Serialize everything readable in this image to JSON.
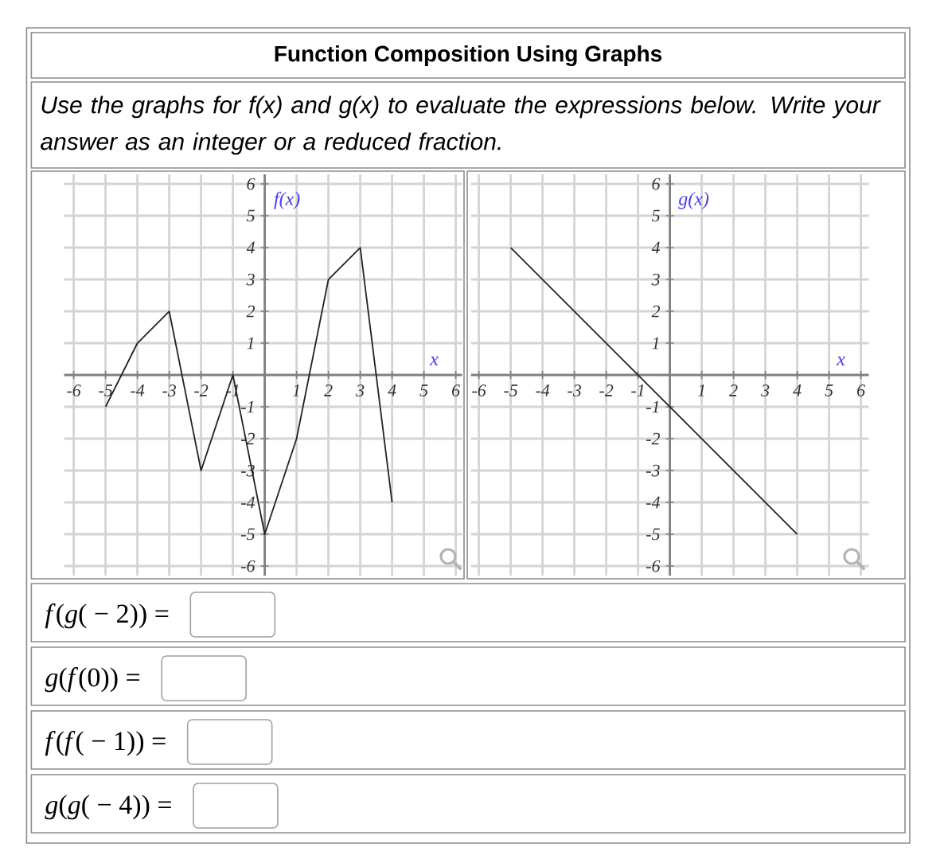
{
  "chart_data": [
    {
      "type": "line",
      "title": "Function Composition Using Graphs",
      "subtitle": "Use the graphs for f(x) and g(x) to evaluate the expressions below. Write your answer as an integer or a reduced fraction.",
      "xlabel": "x",
      "ylabel": "f(x)",
      "x": [
        -5,
        -4,
        -3,
        -2,
        -1,
        0,
        1,
        2,
        3,
        4
      ],
      "values": [
        -1,
        1,
        2,
        -3,
        0,
        -5,
        -2,
        3,
        4,
        -4
      ],
      "color": "#222222",
      "xlim": [
        -6.3,
        6.2
      ],
      "ylim": [
        -6.3,
        6.3
      ],
      "xticks": [
        -6,
        -5,
        -4,
        -3,
        -2,
        -1,
        1,
        2,
        3,
        4,
        5,
        6
      ],
      "yticks": [
        -6,
        -5,
        -4,
        -3,
        -2,
        -1,
        1,
        2,
        3,
        4,
        5,
        6
      ],
      "grid": true,
      "marker": "none",
      "annotations": [
        "*f*(*g*( − 2)) =",
        "*g*(*f*(0)) =",
        "*f*(*f*( − 1)) =",
        "*g*(*g*( − 4)) ="
      ]
    },
    {
      "type": "line",
      "xlabel": "x",
      "ylabel": "g(x)",
      "x": [
        -5,
        4
      ],
      "values": [
        4,
        -5
      ],
      "color": "#222222",
      "xlim": [
        -6.25,
        6.25
      ],
      "ylim": [
        -6.3,
        6.3
      ],
      "xticks": [
        -6,
        -5,
        -4,
        -3,
        -2,
        -1,
        1,
        2,
        3,
        4,
        5,
        6
      ],
      "yticks": [
        -6,
        -5,
        -4,
        -3,
        -2,
        -1,
        1,
        2,
        3,
        4,
        5,
        6
      ],
      "grid": true,
      "marker": "none"
    }
  ]
}
